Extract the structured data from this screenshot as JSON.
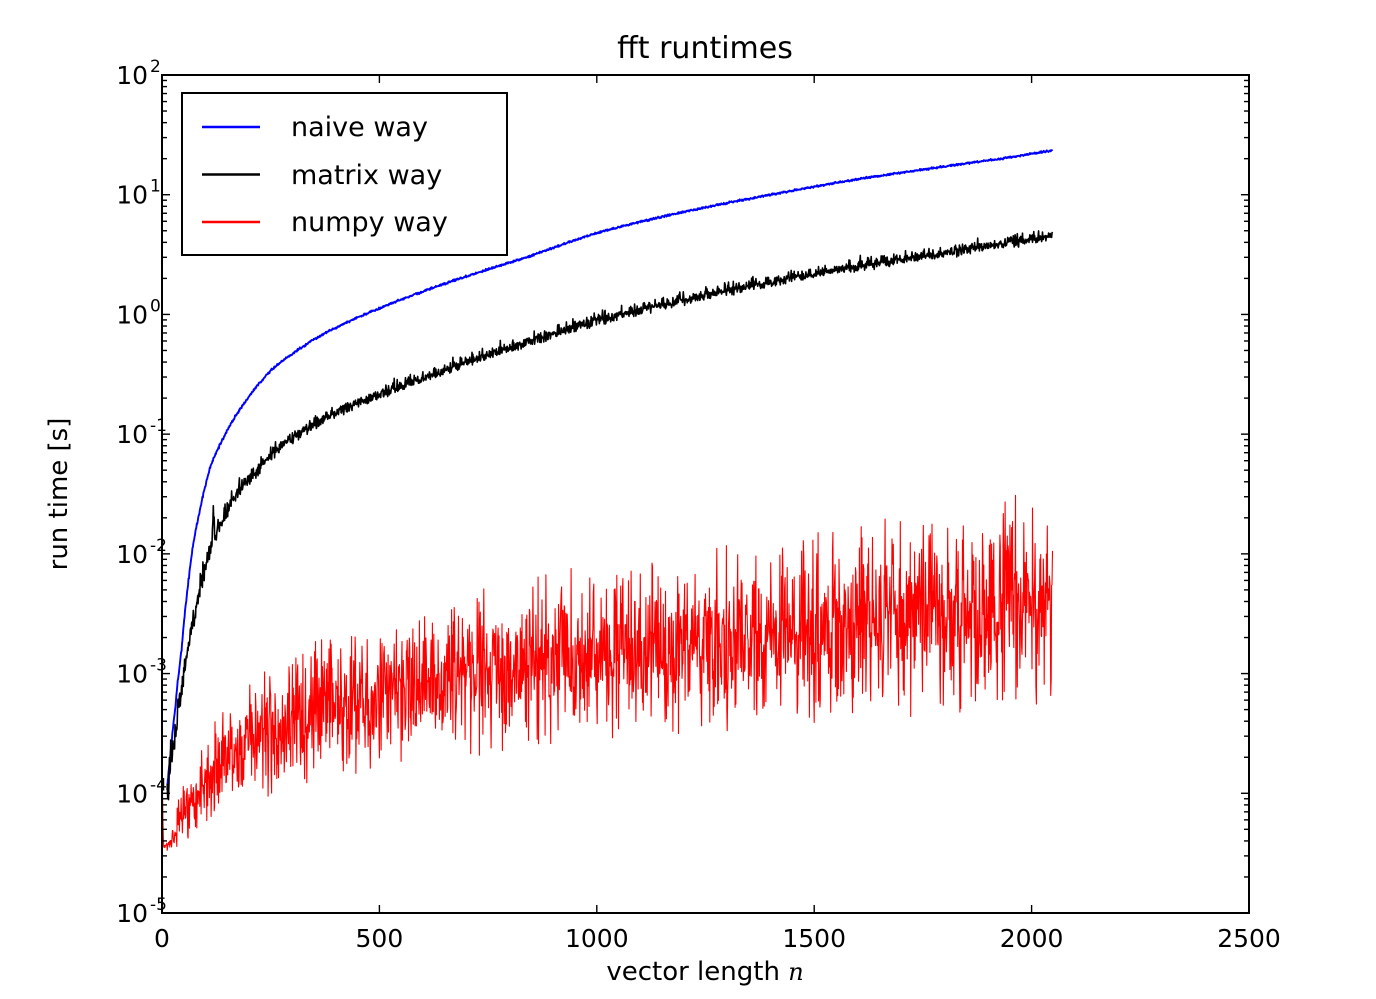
{
  "figure": {
    "title": "fft runtimes",
    "xlabel_text": "vector length ",
    "xlabel_var": "n",
    "ylabel": "run time [s]"
  },
  "chart_data": {
    "type": "line",
    "title": "fft runtimes",
    "xlabel": "vector length n",
    "ylabel": "run time [s]",
    "background": "#ffffff",
    "axes_color": "#000000",
    "grid": false,
    "x_axis": {
      "scale": "linear",
      "min": 0,
      "max": 2500,
      "ticks": [
        0,
        500,
        1000,
        1500,
        2000,
        2500
      ]
    },
    "y_axis": {
      "scale": "log",
      "min": 1e-05,
      "max": 100,
      "tick_exponents": [
        -5,
        -4,
        -3,
        -2,
        -1,
        0,
        1,
        2
      ],
      "minor_ticks_per_decade": [
        2,
        3,
        4,
        5,
        6,
        7,
        8,
        9
      ]
    },
    "legend": {
      "position": "upper left",
      "entries": [
        "naive way",
        "matrix way",
        "numpy way"
      ]
    },
    "data_n_max": 2048,
    "seed": 1337,
    "series": [
      {
        "name": "naive way",
        "color": "#0000ff",
        "line_width": 1.9,
        "n_start": 12,
        "n_end": 2048,
        "noise_decades": 0.01,
        "noise_lown_boost": 1.5,
        "anchors": [
          [
            12,
            0.00011
          ],
          [
            20,
            0.00022
          ],
          [
            30,
            0.0005
          ],
          [
            45,
            0.0016
          ],
          [
            70,
            0.011
          ],
          [
            110,
            0.052
          ],
          [
            160,
            0.125
          ],
          [
            250,
            0.34
          ],
          [
            360,
            0.65
          ],
          [
            480,
            1.05
          ],
          [
            600,
            1.55
          ],
          [
            720,
            2.2
          ],
          [
            840,
            3.0
          ],
          [
            1000,
            4.8
          ],
          [
            1200,
            7.2
          ],
          [
            1400,
            10.0
          ],
          [
            1600,
            13.5
          ],
          [
            1800,
            17.2
          ],
          [
            1950,
            20.5
          ],
          [
            2048,
            23.5
          ]
        ]
      },
      {
        "name": "matrix way",
        "color": "#000000",
        "line_width": 1.6,
        "n_start": 12,
        "n_end": 2048,
        "noise_decades": 0.045,
        "noise_lown_boost": 2.2,
        "upspike_prob": 0.3,
        "upspike_decades": 0.055,
        "spikes": [
          [
            118,
            0.3
          ]
        ],
        "anchors": [
          [
            12,
            8e-05
          ],
          [
            20,
            0.00016
          ],
          [
            30,
            0.0003
          ],
          [
            45,
            0.0007
          ],
          [
            70,
            0.0024
          ],
          [
            110,
            0.0105
          ],
          [
            160,
            0.026
          ],
          [
            250,
            0.066
          ],
          [
            360,
            0.125
          ],
          [
            480,
            0.2
          ],
          [
            600,
            0.29
          ],
          [
            720,
            0.42
          ],
          [
            840,
            0.58
          ],
          [
            1000,
            0.88
          ],
          [
            1200,
            1.3
          ],
          [
            1400,
            1.85
          ],
          [
            1600,
            2.5
          ],
          [
            1800,
            3.2
          ],
          [
            1950,
            3.9
          ],
          [
            2048,
            4.4
          ]
        ]
      },
      {
        "name": "numpy way",
        "color": "#ff0000",
        "line_width": 1.1,
        "n_start": 1,
        "n_end": 2048,
        "distribution": "noisy band between base envelope and base*10^spread",
        "uniform_mix": 0.25,
        "base_anchors": [
          [
            1,
            0.000115
          ],
          [
            2,
            6e-05
          ],
          [
            4,
            3.3e-05
          ],
          [
            20,
            3.2e-05
          ],
          [
            40,
            3.6e-05
          ],
          [
            70,
            4.3e-05
          ],
          [
            110,
            5.5e-05
          ],
          [
            160,
            7e-05
          ],
          [
            250,
            9.5e-05
          ],
          [
            360,
            0.00012
          ],
          [
            500,
            0.000155
          ],
          [
            700,
            0.0002
          ],
          [
            900,
            0.00024
          ],
          [
            1100,
            0.00028
          ],
          [
            1300,
            0.00032
          ],
          [
            1500,
            0.00037
          ],
          [
            1700,
            0.00042
          ],
          [
            1900,
            0.00048
          ],
          [
            2048,
            0.00052
          ]
        ],
        "spread_anchors_decades": [
          [
            1,
            0.02
          ],
          [
            4,
            0.05
          ],
          [
            20,
            0.15
          ],
          [
            40,
            0.45
          ],
          [
            70,
            0.65
          ],
          [
            110,
            0.8
          ],
          [
            160,
            0.95
          ],
          [
            250,
            1.1
          ],
          [
            360,
            1.2
          ],
          [
            500,
            1.28
          ],
          [
            700,
            1.38
          ],
          [
            900,
            1.47
          ],
          [
            1100,
            1.53
          ],
          [
            1300,
            1.58
          ],
          [
            1500,
            1.63
          ],
          [
            1700,
            1.7
          ],
          [
            1900,
            1.78
          ],
          [
            2048,
            1.85
          ]
        ]
      }
    ]
  }
}
